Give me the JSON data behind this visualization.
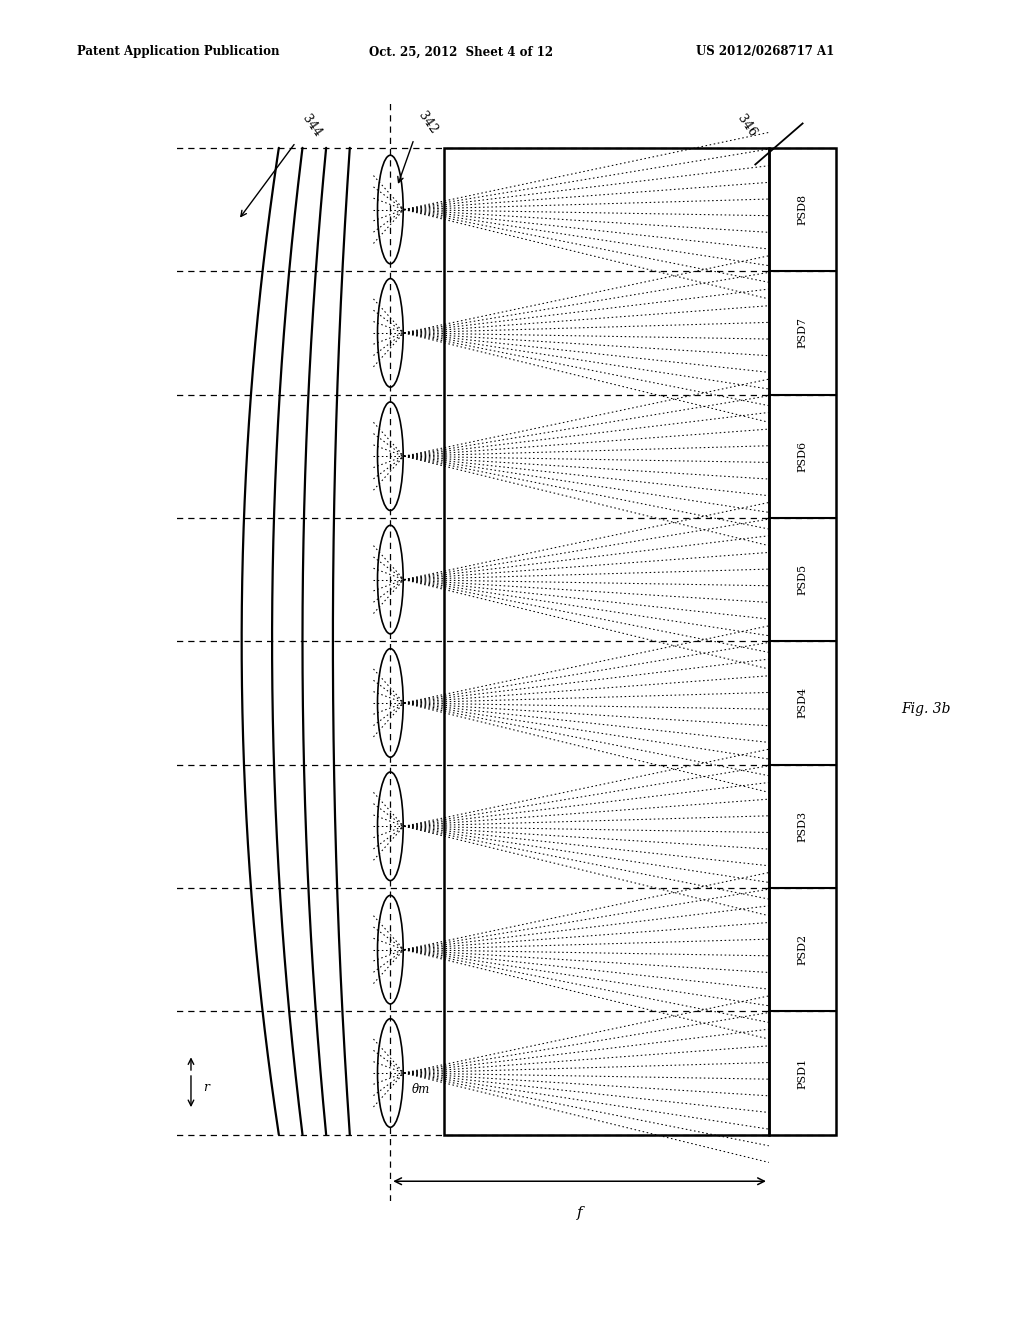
{
  "header_left": "Patent Application Publication",
  "header_center": "Oct. 25, 2012  Sheet 4 of 12",
  "header_right": "US 2012/0268717 A1",
  "fig_label": "Fig. 3b",
  "bg_color": "#ffffff",
  "n_psds": 8,
  "label_344": "344",
  "label_342": "342",
  "label_346": "346",
  "label_r": "r",
  "label_theta": "θm",
  "label_f": "f"
}
